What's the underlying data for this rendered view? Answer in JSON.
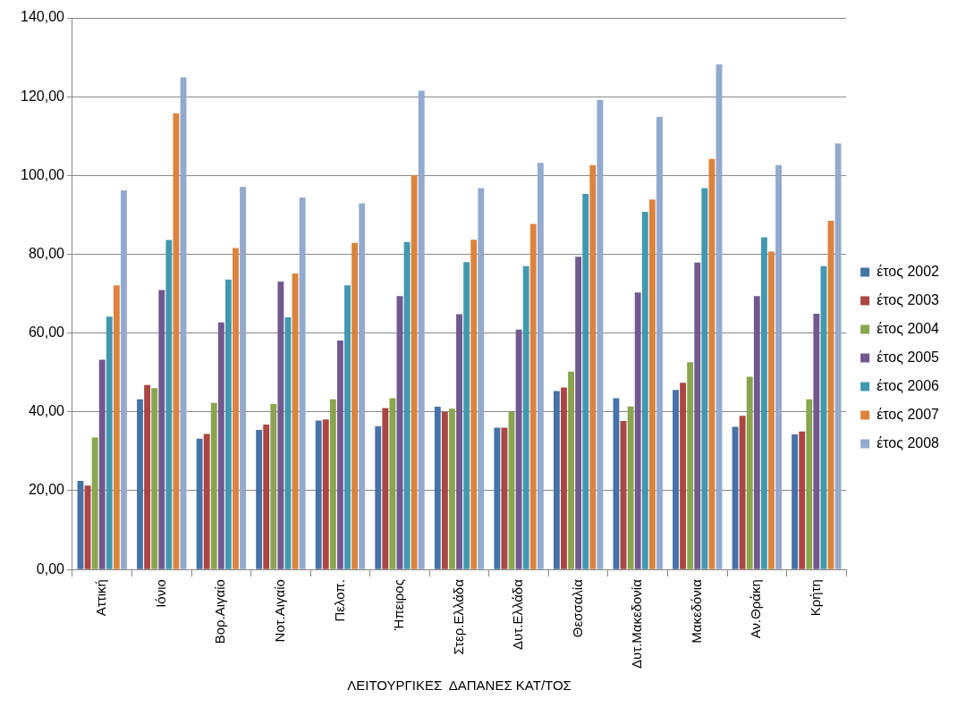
{
  "chart_data": {
    "type": "bar",
    "xlabel": "ΛΕΙΤΟΥΡΓΙΚΕΣ  ΔΑΠΑΝΕΣ ΚΑΤ/ΤΟΣ",
    "categories": [
      "Αττική",
      "Ιόνιο",
      "Βορ.Αιγαίο",
      "Νοτ.Αιγαίο",
      "Πελοπ.",
      "Ήπειρος",
      "Στερ.Ελλάδα",
      "Δυτ.Ελλάδα",
      "Θεσσαλία",
      "Δυτ.Μακεδονία",
      "Μακεδόνια",
      "Αν.Θράκη",
      "Κρήτη"
    ],
    "series": [
      {
        "name": "έτος 2002",
        "color": "#4572a7",
        "values": [
          22.5,
          43.2,
          33.2,
          35.4,
          37.8,
          36.4,
          41.3,
          36.0,
          45.3,
          43.5,
          45.6,
          36.2,
          34.3
        ]
      },
      {
        "name": "έτος 2003",
        "color": "#aa4643",
        "values": [
          21.3,
          46.8,
          34.4,
          36.8,
          38.1,
          41.0,
          40.0,
          36.0,
          46.2,
          37.7,
          47.4,
          39.0,
          35.0
        ]
      },
      {
        "name": "έτος 2004",
        "color": "#89a54e",
        "values": [
          33.5,
          46.0,
          42.3,
          42.0,
          43.2,
          43.5,
          40.8,
          40.0,
          50.2,
          41.4,
          52.6,
          48.9,
          43.2
        ]
      },
      {
        "name": "έτος 2005",
        "color": "#71588f",
        "values": [
          53.2,
          70.9,
          62.7,
          73.1,
          58.1,
          69.4,
          64.8,
          60.9,
          79.4,
          70.3,
          77.9,
          69.4,
          64.9
        ]
      },
      {
        "name": "έτος 2006",
        "color": "#4198af",
        "values": [
          64.2,
          83.6,
          73.6,
          64.0,
          72.1,
          83.1,
          78.0,
          77.0,
          95.3,
          90.8,
          96.8,
          84.3,
          77.0
        ]
      },
      {
        "name": "έτος 2007",
        "color": "#db843d",
        "values": [
          72.1,
          115.8,
          81.6,
          75.1,
          82.9,
          100.1,
          83.7,
          87.7,
          102.6,
          93.9,
          104.2,
          80.7,
          88.5
        ]
      },
      {
        "name": "έτος 2008",
        "color": "#93a9cf",
        "values": [
          96.2,
          124.9,
          97.1,
          94.4,
          92.9,
          121.5,
          96.8,
          103.2,
          119.2,
          114.9,
          128.2,
          102.6,
          108.1
        ]
      }
    ],
    "ylim": [
      0,
      140
    ],
    "yticks": [
      {
        "value": 0,
        "label": "0,00"
      },
      {
        "value": 20,
        "label": "20,00"
      },
      {
        "value": 40,
        "label": "40,00"
      },
      {
        "value": 60,
        "label": "60,00"
      },
      {
        "value": 80,
        "label": "80,00"
      },
      {
        "value": 100,
        "label": "100,00"
      },
      {
        "value": 120,
        "label": "120,00"
      },
      {
        "value": 140,
        "label": "140,00"
      }
    ],
    "grid": "y",
    "legend": "right"
  }
}
